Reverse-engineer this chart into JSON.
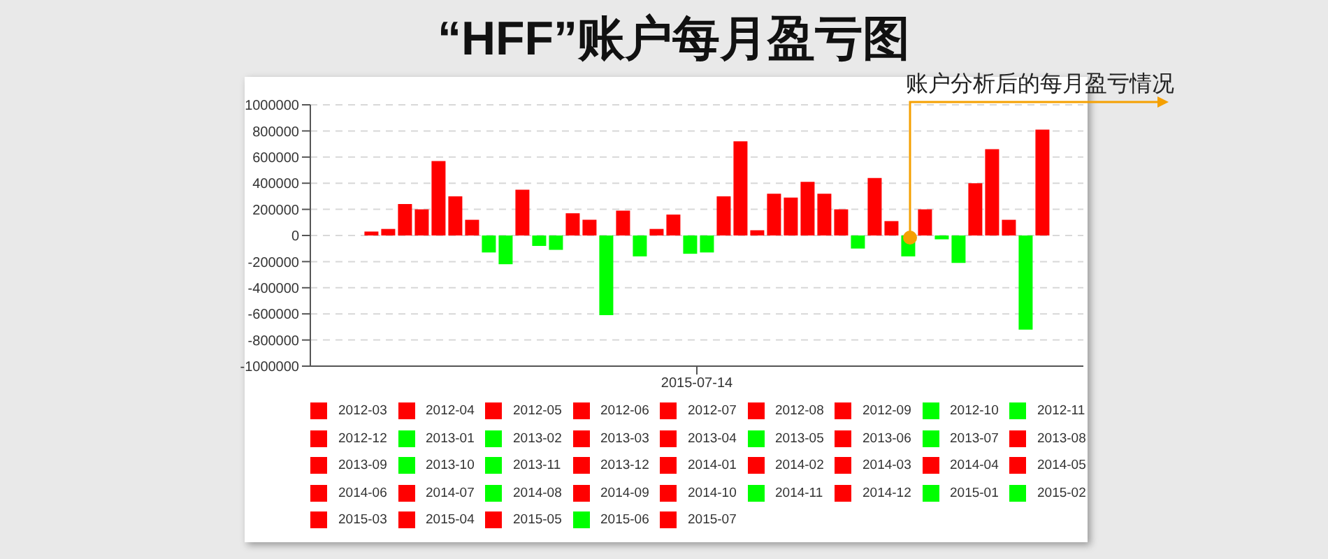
{
  "chart_data": {
    "type": "bar",
    "title": "“HFF”账户每月盈亏图",
    "categories": [
      "2015-07-14"
    ],
    "series": [
      {
        "name": "2012-03",
        "color": "#ff0000",
        "values": [
          30000
        ]
      },
      {
        "name": "2012-04",
        "color": "#ff0000",
        "values": [
          50000
        ]
      },
      {
        "name": "2012-05",
        "color": "#ff0000",
        "values": [
          240000
        ]
      },
      {
        "name": "2012-06",
        "color": "#ff0000",
        "values": [
          200000
        ]
      },
      {
        "name": "2012-07",
        "color": "#ff0000",
        "values": [
          570000
        ]
      },
      {
        "name": "2012-08",
        "color": "#ff0000",
        "values": [
          300000
        ]
      },
      {
        "name": "2012-09",
        "color": "#ff0000",
        "values": [
          120000
        ]
      },
      {
        "name": "2012-10",
        "color": "#00ff00",
        "values": [
          -130000
        ]
      },
      {
        "name": "2012-11",
        "color": "#00ff00",
        "values": [
          -220000
        ]
      },
      {
        "name": "2012-12",
        "color": "#ff0000",
        "values": [
          350000
        ]
      },
      {
        "name": "2013-01",
        "color": "#00ff00",
        "values": [
          -80000
        ]
      },
      {
        "name": "2013-02",
        "color": "#00ff00",
        "values": [
          -110000
        ]
      },
      {
        "name": "2013-03",
        "color": "#ff0000",
        "values": [
          170000
        ]
      },
      {
        "name": "2013-04",
        "color": "#ff0000",
        "values": [
          120000
        ]
      },
      {
        "name": "2013-05",
        "color": "#00ff00",
        "values": [
          -610000
        ]
      },
      {
        "name": "2013-06",
        "color": "#ff0000",
        "values": [
          190000
        ]
      },
      {
        "name": "2013-07",
        "color": "#00ff00",
        "values": [
          -160000
        ]
      },
      {
        "name": "2013-08",
        "color": "#ff0000",
        "values": [
          50000
        ]
      },
      {
        "name": "2013-09",
        "color": "#ff0000",
        "values": [
          160000
        ]
      },
      {
        "name": "2013-10",
        "color": "#00ff00",
        "values": [
          -140000
        ]
      },
      {
        "name": "2013-11",
        "color": "#00ff00",
        "values": [
          -130000
        ]
      },
      {
        "name": "2013-12",
        "color": "#ff0000",
        "values": [
          300000
        ]
      },
      {
        "name": "2014-01",
        "color": "#ff0000",
        "values": [
          720000
        ]
      },
      {
        "name": "2014-02",
        "color": "#ff0000",
        "values": [
          40000
        ]
      },
      {
        "name": "2014-03",
        "color": "#ff0000",
        "values": [
          320000
        ]
      },
      {
        "name": "2014-04",
        "color": "#ff0000",
        "values": [
          290000
        ]
      },
      {
        "name": "2014-05",
        "color": "#ff0000",
        "values": [
          410000
        ]
      },
      {
        "name": "2014-06",
        "color": "#ff0000",
        "values": [
          320000
        ]
      },
      {
        "name": "2014-07",
        "color": "#ff0000",
        "values": [
          200000
        ]
      },
      {
        "name": "2014-08",
        "color": "#00ff00",
        "values": [
          -100000
        ]
      },
      {
        "name": "2014-09",
        "color": "#ff0000",
        "values": [
          440000
        ]
      },
      {
        "name": "2014-10",
        "color": "#ff0000",
        "values": [
          110000
        ]
      },
      {
        "name": "2014-11",
        "color": "#00ff00",
        "values": [
          -160000
        ]
      },
      {
        "name": "2014-12",
        "color": "#ff0000",
        "values": [
          200000
        ]
      },
      {
        "name": "2015-01",
        "color": "#00ff00",
        "values": [
          -30000
        ]
      },
      {
        "name": "2015-02",
        "color": "#00ff00",
        "values": [
          -210000
        ]
      },
      {
        "name": "2015-03",
        "color": "#ff0000",
        "values": [
          400000
        ]
      },
      {
        "name": "2015-04",
        "color": "#ff0000",
        "values": [
          660000
        ]
      },
      {
        "name": "2015-05",
        "color": "#ff0000",
        "values": [
          120000
        ]
      },
      {
        "name": "2015-06",
        "color": "#00ff00",
        "values": [
          -720000
        ]
      },
      {
        "name": "2015-07",
        "color": "#ff0000",
        "values": [
          810000
        ]
      }
    ],
    "ylim": [
      -1000000,
      1000000
    ],
    "yticks": [
      -1000000,
      -800000,
      -600000,
      -400000,
      -200000,
      0,
      200000,
      400000,
      600000,
      800000,
      1000000
    ],
    "grid": "y",
    "legend": "bottom",
    "annotations": [
      "账户分析后的每月盈亏情况"
    ]
  }
}
